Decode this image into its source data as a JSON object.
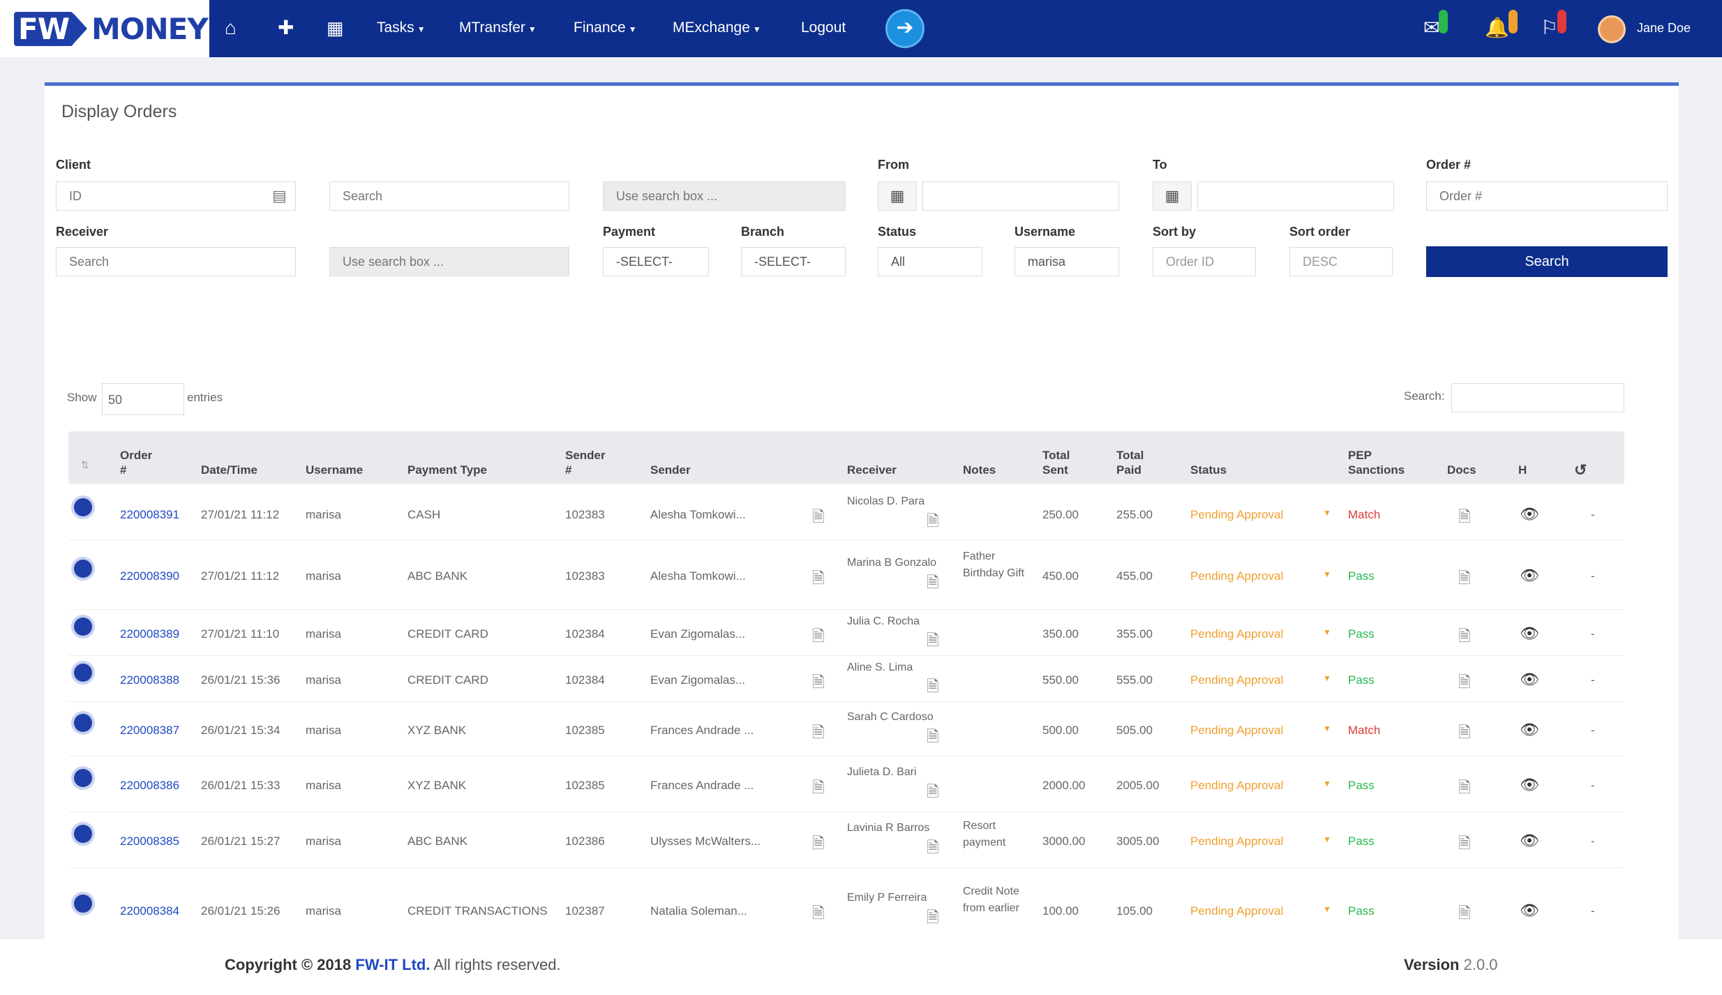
{
  "brand": {
    "logo_fw": "FW",
    "logo_money": "MONEY"
  },
  "nav": {
    "links": [
      "Tasks",
      "MTransfer",
      "Finance",
      "MExchange",
      "Logout"
    ],
    "user_name": "Jane Doe",
    "icons": [
      "home-icon",
      "plus-icon",
      "calculator-icon",
      "go-arrow-icon",
      "mail-icon",
      "bell-icon",
      "chat-icon"
    ]
  },
  "page": {
    "title": "Display Orders"
  },
  "filters": {
    "client_label": "Client",
    "client_id_placeholder": "ID",
    "client_search_placeholder": "Search",
    "client_box_placeholder": "Use search box ...",
    "from_label": "From",
    "to_label": "To",
    "order_label": "Order #",
    "order_placeholder": "Order #",
    "receiver_label": "Receiver",
    "receiver_search_placeholder": "Search",
    "receiver_box_placeholder": "Use search box ...",
    "payment_label": "Payment",
    "payment_value": "-SELECT-",
    "branch_label": "Branch",
    "branch_value": "-SELECT-",
    "status_label": "Status",
    "status_value": "All",
    "username_label": "Username",
    "username_value": "marisa",
    "sortby_label": "Sort by",
    "sortby_value": "Order ID",
    "sortorder_label": "Sort order",
    "sortorder_value": "DESC",
    "search_button": "Search"
  },
  "table_controls": {
    "show_label": "Show",
    "show_value": "50",
    "entries_label": "entries",
    "search_label": "Search:"
  },
  "table": {
    "headers": [
      "Order #",
      "Date/Time",
      "Username",
      "Payment Type",
      "Sender #",
      "Sender",
      "Receiver",
      "Notes",
      "Total Sent",
      "Total Paid",
      "Status",
      "PEP Sanctions",
      "Docs",
      "H"
    ],
    "rows": [
      {
        "order": "220008391",
        "date": "27/01/21 11:12",
        "user": "marisa",
        "payment": "CASH",
        "sender_no": "102383",
        "sender": "Alesha Tomkowi...",
        "receiver": "Nicolas D. Para",
        "notes": "",
        "sent": "250.00",
        "paid": "255.00",
        "status": "Pending Approval",
        "pep": "Match",
        "last": "-"
      },
      {
        "order": "220008390",
        "date": "27/01/21 11:12",
        "user": "marisa",
        "payment": "ABC BANK",
        "sender_no": "102383",
        "sender": "Alesha Tomkowi...",
        "receiver": "Marina B Gonzalo",
        "notes": "Father Birthday Gift",
        "sent": "450.00",
        "paid": "455.00",
        "status": "Pending Approval",
        "pep": "Pass",
        "last": "-"
      },
      {
        "order": "220008389",
        "date": "27/01/21 11:10",
        "user": "marisa",
        "payment": "CREDIT CARD",
        "sender_no": "102384",
        "sender": "Evan Zigomalas...",
        "receiver": "Julia C. Rocha",
        "notes": "",
        "sent": "350.00",
        "paid": "355.00",
        "status": "Pending Approval",
        "pep": "Pass",
        "last": "-"
      },
      {
        "order": "220008388",
        "date": "26/01/21 15:36",
        "user": "marisa",
        "payment": "CREDIT CARD",
        "sender_no": "102384",
        "sender": "Evan Zigomalas...",
        "receiver": "Aline S. Lima",
        "notes": "",
        "sent": "550.00",
        "paid": "555.00",
        "status": "Pending Approval",
        "pep": "Pass",
        "last": "-"
      },
      {
        "order": "220008387",
        "date": "26/01/21 15:34",
        "user": "marisa",
        "payment": "XYZ BANK",
        "sender_no": "102385",
        "sender": "Frances Andrade ...",
        "receiver": "Sarah C Cardoso",
        "notes": "",
        "sent": "500.00",
        "paid": "505.00",
        "status": "Pending Approval",
        "pep": "Match",
        "last": "-"
      },
      {
        "order": "220008386",
        "date": "26/01/21 15:33",
        "user": "marisa",
        "payment": "XYZ BANK",
        "sender_no": "102385",
        "sender": "Frances Andrade ...",
        "receiver": "Julieta D. Bari",
        "notes": "",
        "sent": "2000.00",
        "paid": "2005.00",
        "status": "Pending Approval",
        "pep": "Pass",
        "last": "-"
      },
      {
        "order": "220008385",
        "date": "26/01/21 15:27",
        "user": "marisa",
        "payment": "ABC BANK",
        "sender_no": "102386",
        "sender": "Ulysses McWalters...",
        "receiver": "Lavinia R Barros",
        "notes": "Resort payment",
        "sent": "3000.00",
        "paid": "3005.00",
        "status": "Pending Approval",
        "pep": "Pass",
        "last": "-"
      },
      {
        "order": "220008384",
        "date": "26/01/21 15:26",
        "user": "marisa",
        "payment": "CREDIT TRANSACTIONS",
        "sender_no": "102387",
        "sender": "Natalia Soleman...",
        "receiver": "Emily P Ferreira",
        "notes": "Credit Note from earlier",
        "sent": "100.00",
        "paid": "105.00",
        "status": "Pending Approval",
        "pep": "Pass",
        "last": "-"
      }
    ]
  },
  "footer": {
    "copyright_prefix": "Copyright © 2018",
    "company": "FW-IT Ltd.",
    "rights": "All rights reserved.",
    "version_label": "Version",
    "version_value": "2.0.0"
  },
  "colors": {
    "nav_bg": "#0d2e8c",
    "pending": "#f0a030",
    "match": "#e03a3a",
    "pass": "#2bb74d",
    "link": "#1f49c2"
  }
}
